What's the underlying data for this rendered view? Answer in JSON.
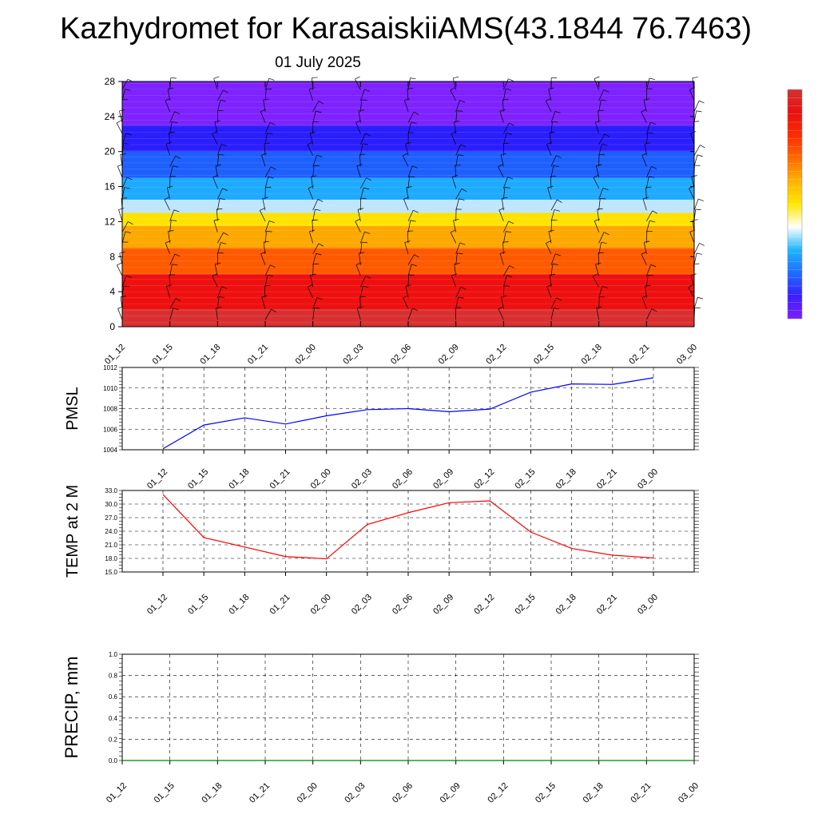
{
  "title": "Kazhydromet for KarasaiskiiAMS(43.1844 76.7463)",
  "date": "01 July 2025",
  "colors": {
    "pmsl_line": "#0000ff",
    "temp_line": "#ff0000",
    "precip_line": "#008000",
    "grid": "#000000",
    "text": "#000000"
  },
  "chart_data": [
    {
      "type": "heatmap",
      "name": "vertical-profile",
      "x": [
        "01_12",
        "01_15",
        "01_18",
        "01_21",
        "02_00",
        "02_03",
        "02_06",
        "02_09",
        "02_12",
        "02_15",
        "02_18",
        "02_21",
        "03_00"
      ],
      "y_ticks": [
        0,
        4,
        8,
        12,
        16,
        20,
        24,
        28
      ],
      "ylim": [
        0,
        28
      ],
      "colormap": [
        "#7e1fff",
        "#3b1eff",
        "#1e6cff",
        "#1eb4ff",
        "#ffffff",
        "#ffe600",
        "#ffb300",
        "#ff6a00",
        "#ff2a00",
        "#e81010",
        "#d83030"
      ],
      "color_bands": [
        {
          "y0": 0,
          "y1": 2,
          "color": "#d83030"
        },
        {
          "y0": 2,
          "y1": 6,
          "color": "#ee1010"
        },
        {
          "y0": 6,
          "y1": 9,
          "color": "#ff5a00"
        },
        {
          "y0": 9,
          "y1": 11.5,
          "color": "#ffa800"
        },
        {
          "y0": 11.5,
          "y1": 13,
          "color": "#ffe200"
        },
        {
          "y0": 13,
          "y1": 14.5,
          "color": "#bfe6ff"
        },
        {
          "y0": 14.5,
          "y1": 17,
          "color": "#1eaaff"
        },
        {
          "y0": 17,
          "y1": 20,
          "color": "#1e5fff"
        },
        {
          "y0": 20,
          "y1": 23,
          "color": "#2a1eff"
        },
        {
          "y0": 23,
          "y1": 28,
          "color": "#7e22ff"
        }
      ],
      "wind_barbs": true
    },
    {
      "type": "line",
      "ylabel": "PMSL",
      "x": [
        "01_12",
        "01_15",
        "01_18",
        "01_21",
        "02_00",
        "02_03",
        "02_06",
        "02_09",
        "02_12",
        "02_15",
        "02_18",
        "02_21",
        "03_00"
      ],
      "ylim": [
        1004,
        1012
      ],
      "y_ticks": [
        1004,
        1006,
        1008,
        1010,
        1012
      ],
      "series": [
        {
          "values": [
            1004.1,
            1006.4,
            1007.1,
            1006.5,
            1007.3,
            1007.9,
            1008.0,
            1007.7,
            1007.95,
            1009.6,
            1010.4,
            1010.35,
            1011.0
          ]
        }
      ],
      "grid": true
    },
    {
      "type": "line",
      "ylabel": "TEMP at 2 M",
      "x": [
        "01_12",
        "01_15",
        "01_18",
        "01_21",
        "02_00",
        "02_03",
        "02_06",
        "02_09",
        "02_12",
        "02_15",
        "02_18",
        "02_21",
        "03_00"
      ],
      "ylim": [
        15,
        33
      ],
      "y_ticks": [
        "15.0",
        "18.0",
        "21.0",
        "24.0",
        "27.0",
        "30.0",
        "33.0"
      ],
      "series": [
        {
          "values": [
            32.1,
            22.6,
            20.5,
            18.4,
            17.9,
            25.5,
            28.1,
            30.3,
            30.7,
            23.8,
            20.2,
            18.7,
            18.1
          ]
        }
      ],
      "grid": true
    },
    {
      "type": "line",
      "ylabel": "PRECIP, mm",
      "x": [
        "01_12",
        "01_15",
        "01_18",
        "01_21",
        "02_00",
        "02_03",
        "02_06",
        "02_09",
        "02_12",
        "02_15",
        "02_18",
        "02_21",
        "03_00"
      ],
      "ylim": [
        0,
        1
      ],
      "y_ticks": [
        "0.0",
        "0.2",
        "0.4",
        "0.6",
        "0.8",
        "1.0"
      ],
      "series": [
        {
          "values": [
            0,
            0,
            0,
            0,
            0,
            0,
            0,
            0,
            0,
            0,
            0,
            0,
            0
          ]
        }
      ],
      "grid": true
    }
  ]
}
